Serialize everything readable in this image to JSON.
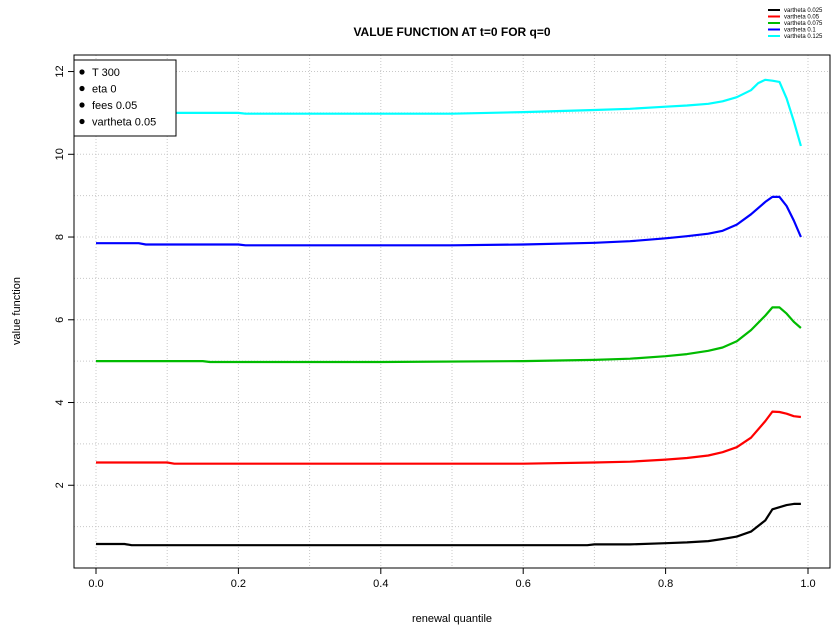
{
  "chart_data": {
    "type": "line",
    "title": "VALUE FUNCTION AT t=0 FOR q=0",
    "xlabel": "renewal quantile",
    "ylabel": "value function",
    "xlim": [
      0.0,
      1.0
    ],
    "ylim": [
      0.0,
      12.4
    ],
    "xticks": [
      0.0,
      0.2,
      0.4,
      0.6,
      0.8,
      1.0
    ],
    "yticks": [
      2,
      4,
      6,
      8,
      10,
      12
    ],
    "grid": true,
    "grid_style": "dotted",
    "params_legend": {
      "placement": "top-left",
      "entries": [
        "T 300",
        "eta 0",
        "fees 0.05",
        "vartheta 0.05"
      ]
    },
    "series_legend": {
      "placement": "top-right, outside plot",
      "entries": [
        {
          "label": "vartheta 0.025",
          "color": "#000000"
        },
        {
          "label": "vartheta 0.05",
          "color": "#ff0000"
        },
        {
          "label": "vartheta 0.075",
          "color": "#00bb00"
        },
        {
          "label": "vartheta 0.1",
          "color": "#0000ff"
        },
        {
          "label": "vartheta 0.125",
          "color": "#00ffff"
        }
      ]
    },
    "series": [
      {
        "name": "vartheta 0.025",
        "color": "#000000",
        "x": [
          0.0,
          0.04,
          0.05,
          0.2,
          0.4,
          0.6,
          0.69,
          0.7,
          0.75,
          0.8,
          0.83,
          0.86,
          0.88,
          0.9,
          0.92,
          0.94,
          0.95,
          0.96,
          0.97,
          0.98,
          0.99
        ],
        "y": [
          0.58,
          0.58,
          0.55,
          0.55,
          0.55,
          0.55,
          0.55,
          0.57,
          0.57,
          0.6,
          0.62,
          0.65,
          0.7,
          0.76,
          0.88,
          1.15,
          1.42,
          1.47,
          1.52,
          1.55,
          1.55
        ]
      },
      {
        "name": "vartheta 0.05",
        "color": "#ff0000",
        "x": [
          0.0,
          0.1,
          0.11,
          0.2,
          0.4,
          0.6,
          0.7,
          0.75,
          0.8,
          0.83,
          0.86,
          0.88,
          0.9,
          0.92,
          0.94,
          0.95,
          0.96,
          0.97,
          0.98,
          0.99
        ],
        "y": [
          2.55,
          2.55,
          2.52,
          2.52,
          2.52,
          2.52,
          2.55,
          2.57,
          2.62,
          2.66,
          2.72,
          2.8,
          2.92,
          3.15,
          3.55,
          3.78,
          3.77,
          3.73,
          3.67,
          3.65
        ]
      },
      {
        "name": "vartheta 0.075",
        "color": "#00bb00",
        "x": [
          0.0,
          0.15,
          0.16,
          0.4,
          0.6,
          0.7,
          0.75,
          0.8,
          0.83,
          0.86,
          0.88,
          0.9,
          0.92,
          0.94,
          0.95,
          0.96,
          0.97,
          0.98,
          0.99
        ],
        "y": [
          5.0,
          5.0,
          4.98,
          4.98,
          5.0,
          5.03,
          5.06,
          5.12,
          5.17,
          5.25,
          5.33,
          5.48,
          5.75,
          6.1,
          6.3,
          6.3,
          6.15,
          5.95,
          5.8
        ]
      },
      {
        "name": "vartheta 0.1",
        "color": "#0000ff",
        "x": [
          0.0,
          0.06,
          0.07,
          0.2,
          0.21,
          0.4,
          0.5,
          0.6,
          0.7,
          0.75,
          0.8,
          0.83,
          0.86,
          0.88,
          0.9,
          0.92,
          0.94,
          0.95,
          0.96,
          0.97,
          0.98,
          0.99
        ],
        "y": [
          7.85,
          7.85,
          7.82,
          7.82,
          7.8,
          7.8,
          7.8,
          7.82,
          7.86,
          7.9,
          7.97,
          8.02,
          8.08,
          8.15,
          8.3,
          8.55,
          8.85,
          8.97,
          8.97,
          8.75,
          8.4,
          8.0
        ]
      },
      {
        "name": "vartheta 0.125",
        "color": "#00ffff",
        "x": [
          0.0,
          0.1,
          0.11,
          0.2,
          0.21,
          0.4,
          0.5,
          0.6,
          0.7,
          0.75,
          0.8,
          0.83,
          0.86,
          0.88,
          0.9,
          0.92,
          0.93,
          0.94,
          0.95,
          0.96,
          0.97,
          0.98,
          0.99
        ],
        "y": [
          11.02,
          11.02,
          11.0,
          11.0,
          10.98,
          10.98,
          10.98,
          11.02,
          11.07,
          11.1,
          11.15,
          11.18,
          11.22,
          11.28,
          11.38,
          11.55,
          11.72,
          11.8,
          11.78,
          11.75,
          11.35,
          10.8,
          10.2
        ]
      }
    ]
  }
}
